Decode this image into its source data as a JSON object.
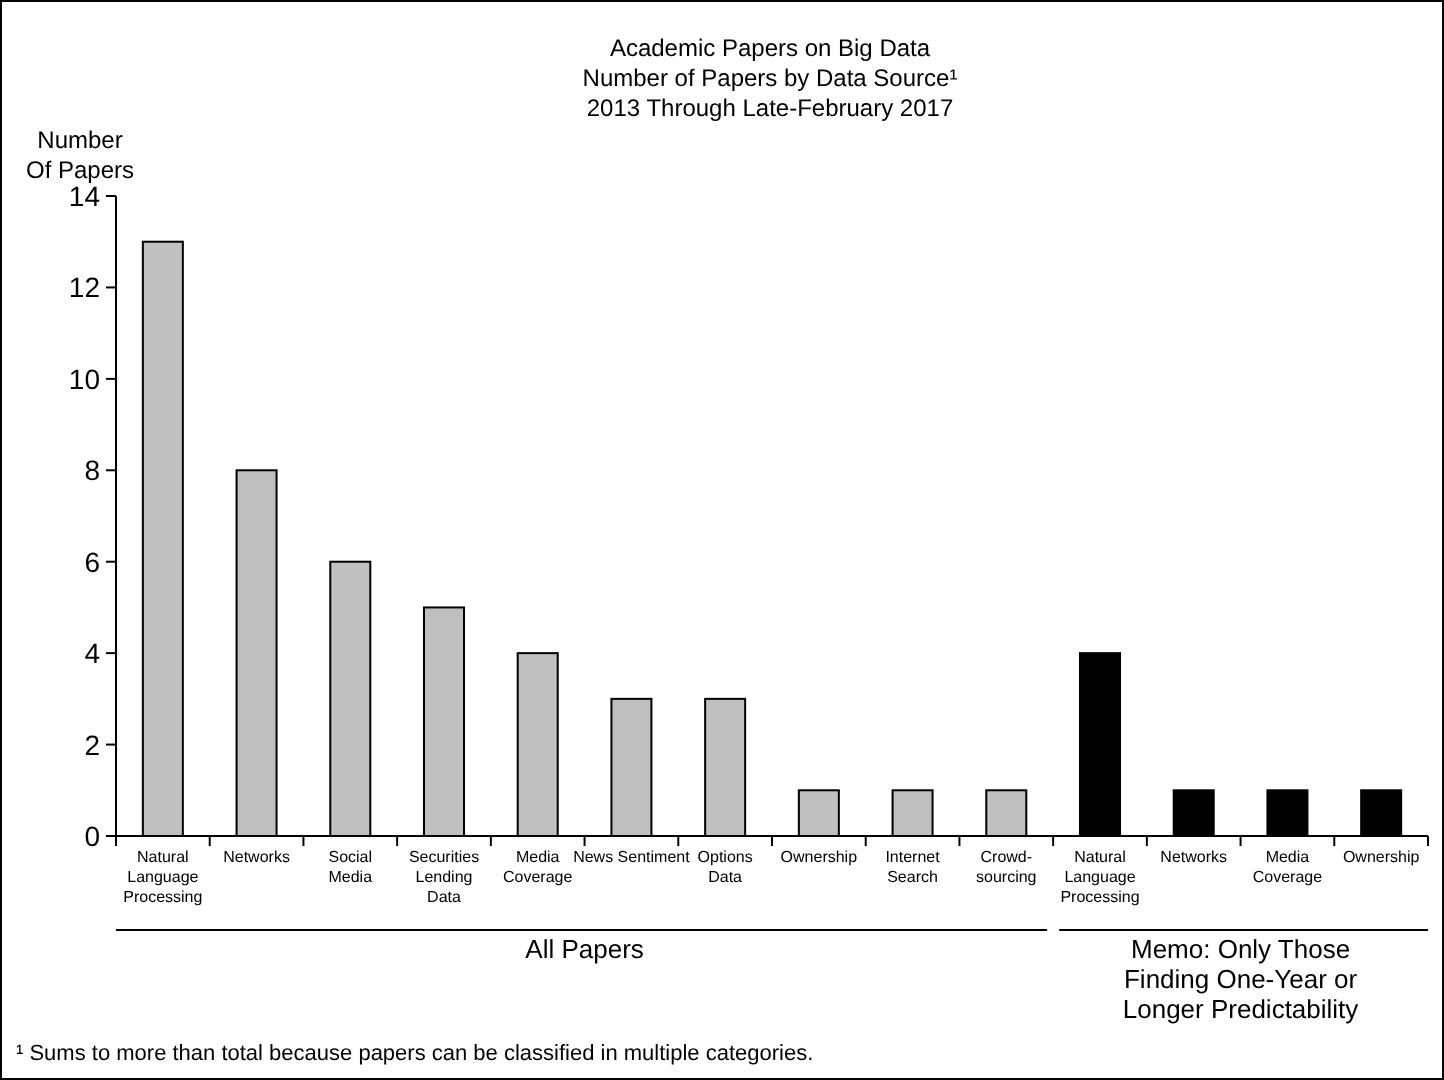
{
  "chart_data": {
    "type": "bar",
    "title": "Academic Papers on Big Data",
    "subtitle": "Number of Papers by Data Source¹\n2013 Through Late-February 2017",
    "ylabel": "Number\nOf Papers",
    "categories": [
      "Natural\nLanguage\nProcessing",
      "Networks",
      "Social\nMedia",
      "Securities\nLending\nData",
      "Media\nCoverage",
      "News Sentiment",
      "Options\nData",
      "Ownership",
      "Internet\nSearch",
      "Crowd-\nsourcing",
      "Natural\nLanguage\nProcessing",
      "Networks",
      "Media\nCoverage",
      "Ownership"
    ],
    "values": [
      13,
      8,
      6,
      5,
      4,
      3,
      3,
      1,
      1,
      1,
      4,
      1,
      1,
      1
    ],
    "colors": [
      "#c0c0c0",
      "#c0c0c0",
      "#c0c0c0",
      "#c0c0c0",
      "#c0c0c0",
      "#c0c0c0",
      "#c0c0c0",
      "#c0c0c0",
      "#c0c0c0",
      "#c0c0c0",
      "#000000",
      "#000000",
      "#000000",
      "#000000"
    ],
    "ylim": [
      0,
      14
    ],
    "yticks": [
      0,
      2,
      4,
      6,
      8,
      10,
      12,
      14
    ],
    "grid": false,
    "annotations": [
      "All Papers",
      "Memo: Only Those\nFinding One-Year or\nLonger Predictability",
      "¹ Sums to more than total because papers can be classified in multiple categories."
    ]
  }
}
